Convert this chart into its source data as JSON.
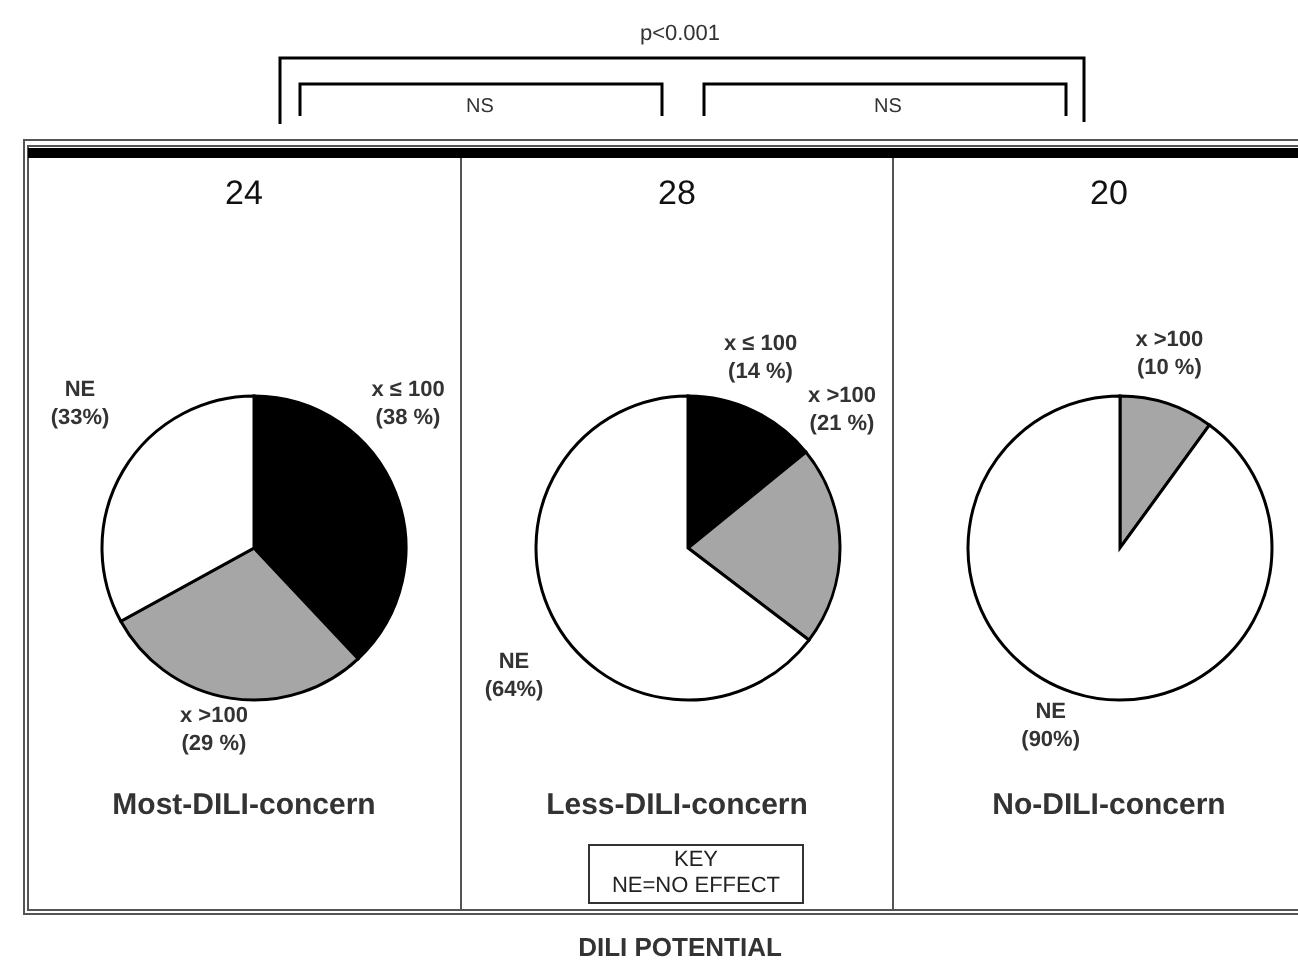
{
  "chart_data": [
    {
      "type": "pie",
      "title": "24",
      "subtitle": "Most-DILI-concern",
      "categories": [
        "x ≤ 100",
        "x >100",
        "NE"
      ],
      "values": [
        38,
        29,
        33
      ],
      "value_labels": [
        "(38 %)",
        "(29 %)",
        "(33%)"
      ],
      "colors": [
        "#000000",
        "#a6a6a6",
        "#ffffff"
      ],
      "annotations": [
        "p<0.001",
        "NS",
        "NS"
      ]
    },
    {
      "type": "pie",
      "title": "28",
      "subtitle": "Less-DILI-concern",
      "categories": [
        "x ≤ 100",
        "x >100",
        "NE"
      ],
      "values": [
        14,
        21,
        64
      ],
      "value_labels": [
        "(14 %)",
        "(21 %)",
        "(64%)"
      ],
      "colors": [
        "#000000",
        "#a6a6a6",
        "#ffffff"
      ],
      "annotations": [
        "KEY",
        "NE=NO EFFECT",
        "DILI POTENTIAL"
      ]
    },
    {
      "type": "pie",
      "title": "20",
      "subtitle": "No-DILI-concern",
      "categories": [
        "x >100",
        "NE"
      ],
      "values": [
        10,
        90
      ],
      "value_labels": [
        "(10 %)",
        "(90%)"
      ],
      "colors": [
        "#a6a6a6",
        "#ffffff"
      ]
    }
  ]
}
